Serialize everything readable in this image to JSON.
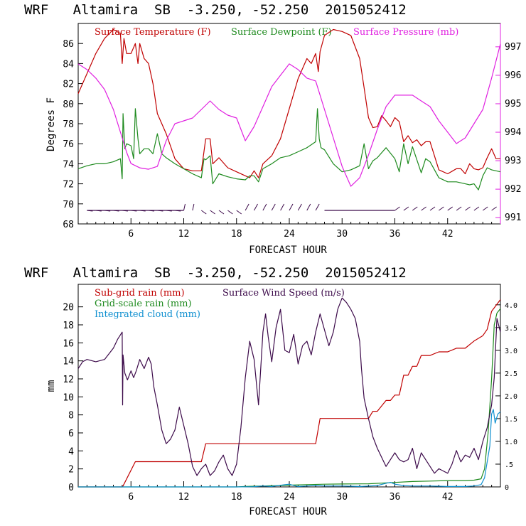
{
  "chart_data": [
    {
      "type": "line",
      "title": "WRF   Altamira  SB  -3.250, -52.250  2015052412",
      "xlabel": "FORECAST HOUR",
      "ylabel": "Degrees F",
      "xlim": [
        0,
        48
      ],
      "ylim": [
        68,
        88
      ],
      "y2lim": [
        990.78,
        997.82
      ],
      "xticks": [
        "6",
        "12",
        "18",
        "24",
        "30",
        "36",
        "42"
      ],
      "yticks": [
        "68",
        "70",
        "72",
        "74",
        "76",
        "78",
        "80",
        "82",
        "84",
        "86"
      ],
      "y2ticks": [
        "991",
        "992",
        "993",
        "994",
        "995",
        "996",
        "997"
      ],
      "colors": {
        "temperature": "#c00000",
        "dewpoint": "#1e8a1e",
        "pressure": "#e020e0",
        "wind": "#3c0a4a"
      },
      "legend": [
        "Surface Temperature (F)",
        "Surface Dewpoint (F)",
        "Surface Pressure (mb)"
      ],
      "series": [
        {
          "name": "Surface Temperature (F)",
          "axis": "left",
          "x": [
            0,
            1,
            2,
            3,
            4,
            4.8,
            5,
            5.2,
            5.5,
            6,
            6.5,
            6.8,
            7,
            7.5,
            8,
            8.5,
            9,
            9.5,
            10,
            11,
            12,
            13,
            14,
            14.5,
            15,
            15.3,
            16,
            17,
            18,
            19,
            19.5,
            20,
            20.5,
            21,
            22,
            23,
            24,
            25,
            26,
            26.5,
            27,
            27.3,
            27.5,
            28,
            29,
            30,
            31,
            32,
            32.5,
            33,
            33.5,
            34,
            34.5,
            35,
            35.5,
            36,
            36.5,
            37,
            37.5,
            38,
            38.5,
            39,
            39.5,
            40,
            41,
            42,
            43,
            43.5,
            44,
            44.5,
            45,
            45.5,
            46,
            46.5,
            47,
            47.5,
            48
          ],
          "y": [
            81,
            83,
            85,
            86.5,
            87.4,
            87,
            84,
            86.5,
            85,
            85,
            86,
            84,
            86,
            84.5,
            84,
            82,
            79,
            78,
            77,
            74.5,
            73.5,
            73.3,
            73.3,
            76.5,
            76.5,
            74,
            74.6,
            73.6,
            73.2,
            72.8,
            72.6,
            73.3,
            72.6,
            74,
            74.8,
            76.5,
            79.5,
            82.5,
            84.5,
            84,
            85,
            83.2,
            85.2,
            86.8,
            87.4,
            87.2,
            86.8,
            84.5,
            81.6,
            78.6,
            77.6,
            77.7,
            78.8,
            78.3,
            77.7,
            78.6,
            78.2,
            76.2,
            76.8,
            76.1,
            76.4,
            75.8,
            76.2,
            76.2,
            73.4,
            73,
            73.5,
            73.5,
            73,
            74,
            73.5,
            73.4,
            73.6,
            74.6,
            75.5,
            74.5,
            74.5
          ]
        },
        {
          "name": "Surface Dewpoint (F)",
          "axis": "left",
          "x": [
            0,
            1,
            2,
            3,
            4,
            4.8,
            5,
            5.1,
            5.3,
            5.5,
            6,
            6.3,
            6.5,
            6.8,
            7,
            7.5,
            8,
            8.5,
            9,
            9.5,
            10,
            11,
            12,
            13,
            14,
            14.3,
            14.5,
            15,
            15.3,
            16,
            17,
            18,
            19,
            19.5,
            20,
            20.5,
            21,
            22,
            23,
            24,
            25,
            26,
            26.5,
            27,
            27.2,
            27.4,
            27.6,
            28,
            29,
            30,
            31,
            32,
            32.5,
            33,
            33.5,
            34,
            35,
            36,
            36.5,
            37,
            37.5,
            38,
            39,
            39.5,
            40,
            41,
            42,
            43,
            44,
            44.5,
            45,
            45.5,
            46,
            46.5,
            47,
            48
          ],
          "y": [
            73.5,
            73.8,
            74,
            74,
            74.2,
            74.5,
            72.5,
            79,
            75.5,
            76,
            75.8,
            74.5,
            79.5,
            76.5,
            75,
            75.5,
            75.5,
            75,
            77,
            75,
            74.6,
            74,
            73.5,
            73,
            72.6,
            74.5,
            74.4,
            74.8,
            72,
            73,
            72.7,
            72.5,
            72.4,
            72.8,
            72.8,
            72.2,
            73.5,
            74,
            74.6,
            74.8,
            75.2,
            75.6,
            75.9,
            76.2,
            79.5,
            76.5,
            75.6,
            75.4,
            74,
            73.2,
            73.4,
            73.8,
            76,
            73.5,
            74.3,
            74.6,
            75.6,
            74.5,
            73.2,
            76,
            74,
            75.7,
            73.1,
            74.5,
            74.2,
            72.6,
            72.2,
            72.2,
            72,
            71.9,
            72,
            71.4,
            72.8,
            73.6,
            73.4,
            73.2
          ]
        },
        {
          "name": "Surface Pressure (mb)",
          "axis": "right",
          "x": [
            0,
            1,
            2,
            3,
            4,
            5,
            5.5,
            6,
            7,
            8,
            9,
            10,
            11,
            12,
            13,
            14,
            15,
            16,
            17,
            18,
            19,
            20,
            21,
            22,
            23,
            24,
            25,
            26,
            27,
            28,
            29,
            30,
            31,
            32,
            33,
            34,
            35,
            36,
            37,
            38,
            39,
            40,
            41,
            42,
            43,
            44,
            45,
            46,
            47,
            48
          ],
          "y": [
            996.4,
            996.2,
            995.9,
            995.5,
            994.8,
            993.8,
            993.3,
            992.9,
            992.75,
            992.7,
            992.8,
            993.7,
            994.3,
            994.4,
            994.5,
            994.8,
            995.1,
            994.8,
            994.6,
            994.5,
            993.7,
            994.2,
            994.9,
            995.6,
            996.0,
            996.4,
            996.2,
            995.9,
            995.8,
            994.8,
            993.8,
            992.8,
            992.1,
            992.4,
            993.2,
            994.1,
            994.9,
            995.3,
            995.3,
            995.3,
            995.1,
            994.9,
            994.4,
            994.0,
            993.6,
            993.8,
            994.3,
            994.8,
            995.9,
            997.1
          ]
        }
      ],
      "wind_barbs": "wind barbs along bottom of panel"
    },
    {
      "type": "line",
      "title": "WRF   Altamira  SB  -3.250, -52.250  2015052412",
      "xlabel": "FORECAST HOUR",
      "ylabel": "mm",
      "xlim": [
        0,
        48
      ],
      "ylim": [
        0,
        22.5
      ],
      "y2lim": [
        0,
        4.45
      ],
      "xticks": [
        "6",
        "12",
        "18",
        "24",
        "30",
        "36",
        "42"
      ],
      "yticks": [
        "0",
        "2",
        "4",
        "6",
        "8",
        "10",
        "12",
        "14",
        "16",
        "18",
        "20"
      ],
      "y2ticks": [
        "0",
        ".5",
        "1.0",
        "1.5",
        "2.0",
        "2.5",
        "3.0",
        "3.5",
        "4.0"
      ],
      "colors": {
        "subgrid": "#c00000",
        "gridscale": "#1e8a1e",
        "cloud": "#1090d0",
        "wind": "#3c0a4a"
      },
      "legend": [
        "Sub-grid rain (mm)",
        "Grid-scale rain (mm)",
        "Integrated cloud (mm)",
        "Surface Wind Speed (m/s)"
      ],
      "series": [
        {
          "name": "Sub-grid rain (mm)",
          "axis": "left",
          "x": [
            0,
            5,
            5.1,
            6.5,
            14,
            14.5,
            15,
            15.1,
            21,
            27,
            27.5,
            28,
            33,
            33.5,
            34,
            35,
            35.5,
            36,
            36.5,
            37,
            37.5,
            38,
            38.5,
            39,
            40,
            41,
            42,
            43,
            44,
            45,
            46,
            46.5,
            47,
            48
          ],
          "y": [
            0,
            0,
            0.1,
            2.8,
            2.8,
            4.8,
            4.8,
            4.8,
            4.8,
            4.8,
            7.6,
            7.6,
            7.6,
            8.4,
            8.4,
            9.6,
            9.6,
            10.2,
            10.2,
            12.4,
            12.4,
            13.4,
            13.4,
            14.6,
            14.6,
            15,
            15,
            15.4,
            15.4,
            16.2,
            16.8,
            17.5,
            19.5,
            20.8
          ]
        },
        {
          "name": "Grid-scale rain (mm)",
          "axis": "left",
          "x": [
            0,
            18,
            19,
            21,
            23,
            24,
            26,
            28,
            30,
            33,
            36,
            38,
            40,
            42,
            44,
            45,
            45.8,
            46.2,
            46.6,
            47,
            47.3,
            47.6,
            48
          ],
          "y": [
            0,
            0,
            0.05,
            0.1,
            0.15,
            0.2,
            0.25,
            0.3,
            0.32,
            0.35,
            0.5,
            0.6,
            0.65,
            0.7,
            0.7,
            0.75,
            0.9,
            2,
            6,
            12,
            18,
            19.3,
            19.8
          ]
        },
        {
          "name": "Integrated cloud (mm)",
          "axis": "right",
          "x": [
            0,
            18,
            20,
            21,
            22,
            23.5,
            24,
            24.5,
            25,
            26,
            27,
            28,
            30,
            32,
            34,
            35,
            35.5,
            36,
            37,
            38,
            40,
            42,
            44,
            45,
            45.8,
            46.2,
            46.5,
            46.8,
            47,
            47.2,
            47.4,
            47.7,
            48
          ],
          "y": [
            0,
            0,
            0.005,
            0.02,
            0.01,
            0.05,
            0.06,
            0.03,
            0.01,
            0.02,
            0.03,
            0.02,
            0.02,
            0.01,
            0.03,
            0.08,
            0.1,
            0.06,
            0.03,
            0.02,
            0.02,
            0.01,
            0.01,
            0.02,
            0.05,
            0.2,
            0.55,
            0.9,
            1.6,
            1.7,
            1.4,
            1.6,
            1.65
          ]
        },
        {
          "name": "Surface Wind Speed (m/s)",
          "axis": "right",
          "x": [
            0,
            0.5,
            1,
            2,
            3,
            4,
            4.5,
            5,
            5.05,
            5.1,
            5.3,
            5.6,
            6,
            6.3,
            6.6,
            7,
            7.5,
            8,
            8.3,
            8.6,
            9,
            9.5,
            10,
            10.5,
            11,
            11.5,
            12,
            12.5,
            13,
            13.5,
            14,
            14.5,
            15,
            15.5,
            16,
            16.5,
            17,
            17.5,
            18,
            18.5,
            19,
            19.5,
            20,
            20.5,
            21,
            21.3,
            21.6,
            22,
            22.5,
            23,
            23.5,
            24,
            24.5,
            25,
            25.5,
            26,
            26.5,
            27,
            27.5,
            28,
            28.5,
            29,
            29.5,
            30,
            30.5,
            31,
            31.5,
            32,
            32.2,
            32.5,
            33,
            33.5,
            34,
            34.5,
            35,
            35.5,
            36,
            36.5,
            37,
            37.5,
            38,
            38.5,
            39,
            39.5,
            40,
            40.5,
            41,
            41.5,
            42,
            42.5,
            43,
            43.5,
            44,
            44.5,
            45,
            45.5,
            46,
            46.5,
            47,
            47.3,
            47.6,
            48
          ],
          "y": [
            2.6,
            2.75,
            2.8,
            2.75,
            2.8,
            3.05,
            3.25,
            3.4,
            1.8,
            2.9,
            2.5,
            2.35,
            2.55,
            2.4,
            2.55,
            2.8,
            2.6,
            2.85,
            2.7,
            2.2,
            1.8,
            1.25,
            0.95,
            1.05,
            1.25,
            1.75,
            1.35,
            0.95,
            0.45,
            0.25,
            0.4,
            0.5,
            0.25,
            0.35,
            0.55,
            0.7,
            0.4,
            0.25,
            0.5,
            1.3,
            2.4,
            3.2,
            2.8,
            1.8,
            3.4,
            3.8,
            3.3,
            2.75,
            3.5,
            3.9,
            3.0,
            2.95,
            3.35,
            2.7,
            3.1,
            3.2,
            2.9,
            3.4,
            3.8,
            3.45,
            3.1,
            3.4,
            3.9,
            4.15,
            4.05,
            3.9,
            3.7,
            3.2,
            2.6,
            1.95,
            1.5,
            1.1,
            0.85,
            0.65,
            0.45,
            0.6,
            0.75,
            0.6,
            0.55,
            0.6,
            0.85,
            0.4,
            0.75,
            0.6,
            0.45,
            0.3,
            0.4,
            0.35,
            0.3,
            0.5,
            0.8,
            0.55,
            0.7,
            0.65,
            0.85,
            0.6,
            1.0,
            1.3,
            1.8,
            2.4,
            3.7,
            3.4
          ]
        }
      ]
    }
  ]
}
